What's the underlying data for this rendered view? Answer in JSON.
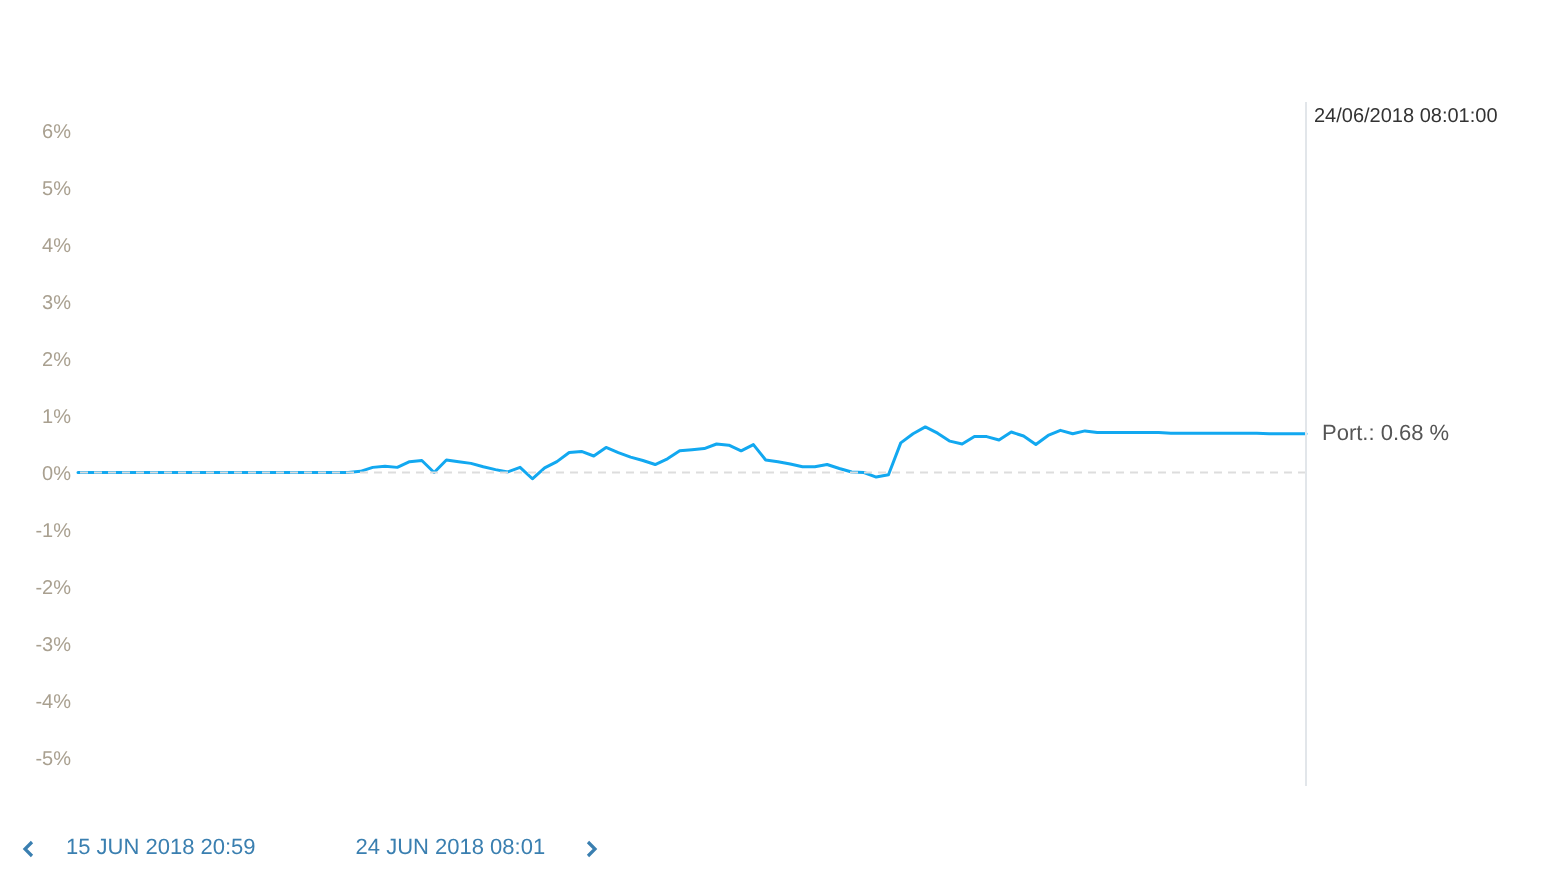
{
  "chart_data": {
    "type": "line",
    "categories": [
      null,
      null,
      null,
      null,
      null,
      null,
      null,
      null,
      null,
      null,
      null,
      null,
      null,
      null,
      null,
      null,
      null,
      null,
      null,
      null,
      null,
      null,
      null,
      null,
      null,
      null,
      null,
      null,
      null,
      null,
      null,
      null,
      null,
      null,
      null,
      null,
      null,
      null,
      null,
      null,
      null,
      null,
      null,
      null,
      null,
      null,
      null,
      null,
      null,
      null,
      null,
      null,
      null,
      null,
      null,
      null,
      null,
      null,
      null,
      null,
      null,
      null,
      null,
      null,
      null,
      null,
      null,
      null,
      null,
      null,
      null,
      null,
      null,
      null,
      null,
      null,
      null,
      null,
      null,
      null,
      null,
      null,
      null,
      null,
      null,
      null,
      null,
      null,
      null,
      null,
      null,
      null,
      null,
      null,
      null,
      null,
      null,
      null,
      null,
      null,
      null
    ],
    "ylim": [
      -5.5,
      6.5
    ],
    "yticks": [
      {
        "value": -5,
        "label": "-5%"
      },
      {
        "value": -4,
        "label": "-4%"
      },
      {
        "value": -3,
        "label": "-3%"
      },
      {
        "value": -2,
        "label": "-2%"
      },
      {
        "value": -1,
        "label": "-1%"
      },
      {
        "value": 0,
        "label": "0%"
      },
      {
        "value": 1,
        "label": "1%"
      },
      {
        "value": 2,
        "label": "2%"
      },
      {
        "value": 3,
        "label": "3%"
      },
      {
        "value": 4,
        "label": "4%"
      },
      {
        "value": 5,
        "label": "5%"
      },
      {
        "value": 6,
        "label": "6%"
      }
    ],
    "tick_labels": "y",
    "series": [
      {
        "color": "#12a8f0",
        "values": [
          0,
          0,
          0,
          0,
          0,
          0,
          0,
          0,
          0,
          0,
          0,
          0,
          0,
          0,
          0,
          0,
          0,
          0,
          0,
          0,
          0,
          0,
          0,
          0.02,
          0.09,
          0.11,
          0.09,
          0.19,
          0.21,
          0,
          0.22,
          0.19,
          0.16,
          0.1,
          0.05,
          0.01,
          0.09,
          -0.11,
          0.08,
          0.19,
          0.35,
          0.37,
          0.29,
          0.44,
          0.35,
          0.27,
          0.21,
          0.14,
          0.24,
          0.38,
          0.4,
          0.42,
          0.5,
          0.48,
          0.38,
          0.49,
          0.22,
          0.19,
          0.15,
          0.1,
          0.1,
          0.14,
          0.07,
          0.01,
          0,
          -0.08,
          -0.04,
          0.52,
          0.68,
          0.8,
          0.69,
          0.55,
          0.5,
          0.63,
          0.63,
          0.57,
          0.71,
          0.64,
          0.49,
          0.65,
          0.74,
          0.68,
          0.73,
          0.7,
          0.7,
          0.7,
          0.7,
          0.7,
          0.7,
          0.69,
          0.69,
          0.69,
          0.69,
          0.69,
          0.69,
          0.69,
          0.69,
          0.68,
          0.68,
          0.68,
          0.68
        ]
      }
    ],
    "ref_lines": [
      {
        "axis": "y",
        "value": 0,
        "color": "#dddddd",
        "line_style": "dashed"
      },
      {
        "axis": "x",
        "label": "24/06/2018 08:01:00",
        "color": "#e2e6ea"
      }
    ],
    "annotations": [
      "Port.: 0.68 %",
      "15 JUN 2018 20:59",
      "24 JUN 2018 08:01"
    ]
  }
}
